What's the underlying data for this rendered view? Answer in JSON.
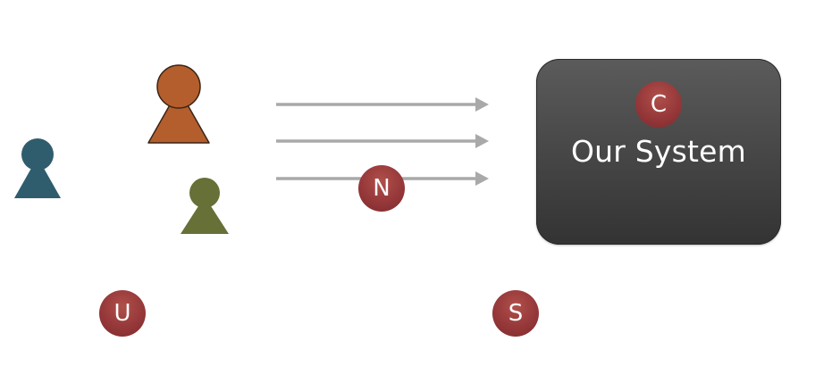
{
  "system": {
    "title": "Our System",
    "fill": "#454545"
  },
  "badges": {
    "c": "C",
    "n": "N",
    "u": "U",
    "s": "S",
    "color": "#96383a"
  },
  "users": {
    "colors": [
      "#2f5d6e",
      "#b35e2c",
      "#667037"
    ],
    "icon": "person-icon"
  },
  "arrows": {
    "count": 3,
    "color": "#a9a9a9"
  }
}
